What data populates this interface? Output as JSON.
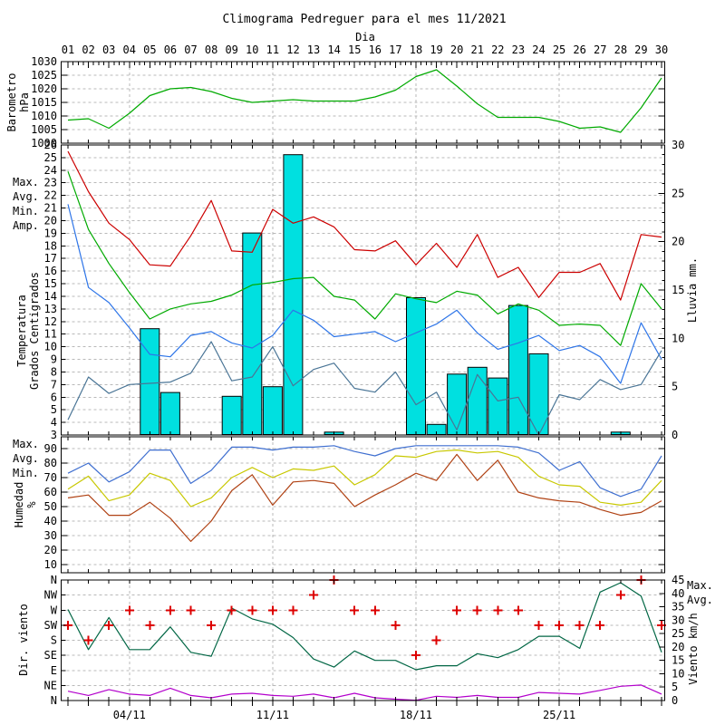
{
  "title": "Climograma Pedreguer para el mes 11/2021",
  "x_axis": {
    "label": "Dia",
    "day_labels": [
      "01",
      "02",
      "03",
      "04",
      "05",
      "06",
      "07",
      "08",
      "09",
      "10",
      "11",
      "12",
      "13",
      "14",
      "15",
      "16",
      "17",
      "18",
      "19",
      "20",
      "21",
      "22",
      "23",
      "24",
      "25",
      "26",
      "27",
      "28",
      "29",
      "30"
    ],
    "bottom_date_labels": [
      {
        "day": 4,
        "label": "04/11"
      },
      {
        "day": 11,
        "label": "11/11"
      },
      {
        "day": 18,
        "label": "18/11"
      },
      {
        "day": 25,
        "label": "25/11"
      }
    ],
    "vertical_gridline_days": [
      4,
      11,
      18,
      25
    ]
  },
  "chart_data": [
    {
      "id": "barometer",
      "type": "line",
      "axis_label_lines": [
        "Barometro",
        "hPa"
      ],
      "ylim": [
        1000,
        1030
      ],
      "yticks": [
        1000,
        1005,
        1010,
        1015,
        1020,
        1025,
        1030
      ],
      "series": [
        {
          "color": "#00aa00",
          "values": [
            1008.5,
            1009,
            1005.5,
            1011,
            1017.5,
            1020,
            1020.5,
            1019,
            1016.5,
            1015,
            1015.5,
            1016,
            1015.5,
            1015.5,
            1015.5,
            1017,
            1019.5,
            1024.5,
            1027,
            1021,
            1014.5,
            1009.5,
            1009.5,
            1009.5,
            1008,
            1005.5,
            1006,
            1004,
            1013,
            1024
          ]
        }
      ]
    },
    {
      "id": "temperature_rain",
      "type": "line+bar",
      "axis_label_lines": [
        "Temperatura",
        "Grados Centigrados"
      ],
      "ylim": [
        3,
        26
      ],
      "yticks": [
        3,
        4,
        5,
        6,
        7,
        8,
        9,
        10,
        11,
        12,
        13,
        14,
        15,
        16,
        17,
        18,
        19,
        20,
        21,
        22,
        23,
        24,
        25,
        26
      ],
      "series": [
        {
          "label": "Max.",
          "color": "#cc0000",
          "values": [
            25.5,
            22.3,
            19.8,
            18.5,
            16.5,
            16.4,
            18.8,
            21.6,
            17.6,
            17.5,
            20.9,
            19.8,
            20.3,
            19.5,
            17.7,
            17.6,
            18.4,
            16.5,
            18.2,
            16.3,
            18.9,
            15.5,
            16.3,
            13.9,
            15.9,
            15.9,
            16.6,
            13.7,
            18.9,
            18.7
          ]
        },
        {
          "label": "Avg.",
          "color": "#00aa00",
          "values": [
            23.9,
            19.3,
            16.6,
            14.3,
            12.2,
            13,
            13.4,
            13.6,
            14.1,
            14.9,
            15.1,
            15.4,
            15.5,
            14,
            13.7,
            12.2,
            14.2,
            13.8,
            13.5,
            14.4,
            14.1,
            12.6,
            13.4,
            12.9,
            11.7,
            11.8,
            11.7,
            10.1,
            15,
            13
          ]
        },
        {
          "label": "Min.",
          "color": "#2e75e8",
          "values": [
            21.3,
            14.7,
            13.5,
            11.5,
            9.4,
            9.2,
            10.9,
            11.2,
            10.3,
            9.9,
            10.9,
            12.9,
            12.1,
            10.8,
            11,
            11.2,
            10.4,
            11.1,
            11.8,
            12.9,
            11.1,
            9.8,
            10.3,
            10.9,
            9.7,
            10.1,
            9.2,
            7.1,
            11.9,
            9
          ]
        },
        {
          "label": "Amp.",
          "color": "#4a7596",
          "values": [
            4.2,
            7.6,
            6.3,
            7,
            7.1,
            7.2,
            7.9,
            10.4,
            7.3,
            7.6,
            10,
            6.9,
            8.2,
            8.7,
            6.7,
            6.4,
            8,
            5.4,
            6.4,
            3.4,
            7.8,
            5.7,
            6,
            3,
            6.2,
            5.8,
            7.4,
            6.6,
            7,
            9.7
          ]
        }
      ],
      "rain": {
        "label": "Lluvia mm.",
        "bar_color": "#00e0e0",
        "label_color": "#00cccc",
        "ylim": [
          0,
          30
        ],
        "yticks": [
          0,
          5,
          10,
          15,
          20,
          25,
          30
        ],
        "values": [
          0,
          0,
          0,
          0,
          11,
          4.4,
          0,
          0,
          4,
          20.9,
          5,
          29,
          0,
          0.3,
          0,
          0,
          0,
          14.2,
          1.1,
          6.3,
          7,
          5.9,
          13.4,
          8.4,
          0,
          0,
          0,
          0.3,
          0,
          0
        ]
      }
    },
    {
      "id": "humidity",
      "type": "line",
      "axis_label_lines": [
        "Humedad",
        "%"
      ],
      "ylim": [
        5,
        98
      ],
      "yticks": [
        10,
        20,
        30,
        40,
        50,
        60,
        70,
        80,
        90
      ],
      "series": [
        {
          "label": "Max.",
          "color": "#3f6fd0",
          "values": [
            73,
            80,
            67,
            74,
            89,
            89,
            66,
            75,
            91,
            91,
            89,
            91,
            91,
            92,
            88,
            85,
            90,
            92,
            92,
            92,
            92,
            92,
            91,
            87,
            75,
            81,
            63,
            57,
            62,
            85
          ]
        },
        {
          "label": "Avg.",
          "color": "#c8c800",
          "values": [
            62,
            71,
            54,
            58,
            73,
            68,
            50,
            56,
            70,
            77,
            70,
            76,
            75,
            78,
            65,
            72,
            85,
            84,
            88,
            89,
            87,
            88,
            84,
            71,
            65,
            64,
            53,
            51,
            53,
            68
          ]
        },
        {
          "label": "Min.",
          "color": "#b04214",
          "values": [
            56,
            58,
            44,
            44,
            53,
            42,
            26,
            40,
            61,
            72,
            51,
            67,
            68,
            66,
            50,
            58,
            65,
            73,
            68,
            86,
            68,
            82,
            60,
            56,
            54,
            53,
            48,
            44,
            46,
            54
          ]
        }
      ]
    },
    {
      "id": "wind",
      "type": "line+marker",
      "dir_label": "Dir. viento",
      "dir_color": "#dd0000",
      "dir_ticks": [
        "N",
        "NW",
        "W",
        "SW",
        "S",
        "SE",
        "E",
        "NE",
        "N"
      ],
      "direction": [
        "SW",
        "S",
        "SW",
        "W",
        "SW",
        "W",
        "W",
        "SW",
        "W",
        "W",
        "W",
        "W",
        "NW",
        "N",
        "W",
        "W",
        "SW",
        "SE",
        "S",
        "W",
        "W",
        "W",
        "W",
        "SW",
        "SW",
        "SW",
        "SW",
        "NW",
        "N",
        "SW"
      ],
      "speed_label": "Viento km/h",
      "speed_ylim": [
        0,
        45
      ],
      "speed_yticks": [
        0,
        5,
        10,
        15,
        20,
        25,
        30,
        35,
        40,
        45
      ],
      "series": [
        {
          "label": "Max.",
          "color": "#006644",
          "values": [
            34,
            19,
            31,
            19,
            19,
            27.5,
            18,
            16.5,
            34.5,
            30.5,
            28.5,
            23.5,
            15.5,
            12.5,
            18.5,
            15,
            15,
            11.5,
            13,
            13,
            17.5,
            16,
            19,
            24,
            24,
            19.5,
            40.5,
            44,
            39,
            18
          ]
        },
        {
          "label": "Avg.",
          "color": "#b300cc",
          "values": [
            3.5,
            1.9,
            4.1,
            2.4,
            1.9,
            4.6,
            1.9,
            1,
            2.4,
            2.7,
            1.9,
            1.6,
            2.4,
            1,
            2.7,
            1,
            0.5,
            0.1,
            1.6,
            1.2,
            1.9,
            1.2,
            1.2,
            3,
            2.7,
            2.4,
            3.8,
            5.3,
            5.8,
            2.4
          ]
        }
      ]
    }
  ]
}
